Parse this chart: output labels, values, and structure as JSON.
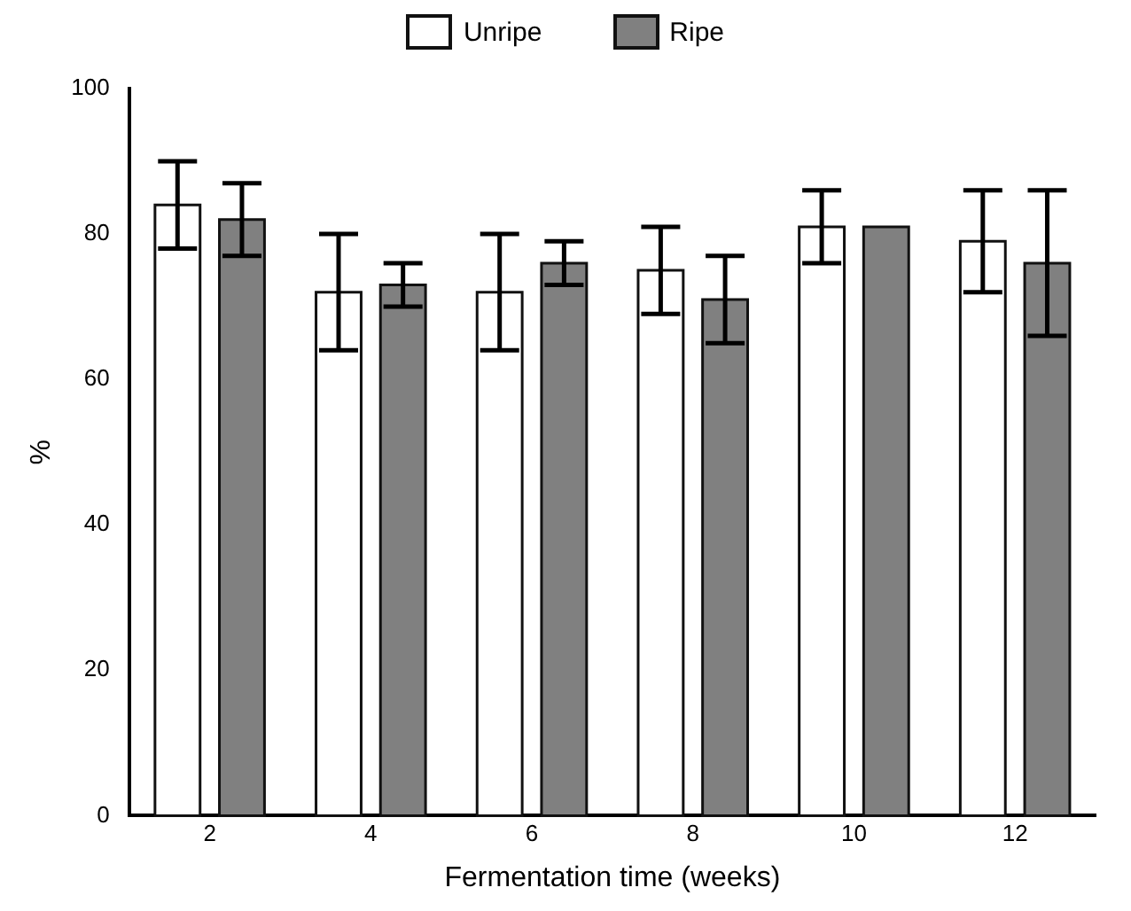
{
  "chart_data": {
    "type": "bar",
    "xlabel": "Fermentation time (weeks)",
    "ylabel": "%",
    "categories": [
      "2",
      "4",
      "6",
      "8",
      "10",
      "12"
    ],
    "series": [
      {
        "name": "Unripe",
        "color": "#ffffff",
        "values": [
          84,
          72,
          72,
          75,
          81,
          79
        ],
        "errors": [
          6,
          8,
          8,
          6,
          5,
          7
        ]
      },
      {
        "name": "Ripe",
        "color": "#808080",
        "values": [
          82,
          73,
          76,
          71,
          81,
          76
        ],
        "errors": [
          5,
          3,
          3,
          6,
          null,
          10
        ]
      }
    ],
    "ylim": [
      0,
      100
    ],
    "yticks": [
      0,
      20,
      40,
      60,
      80,
      100
    ],
    "grid": false,
    "legend": "top"
  }
}
